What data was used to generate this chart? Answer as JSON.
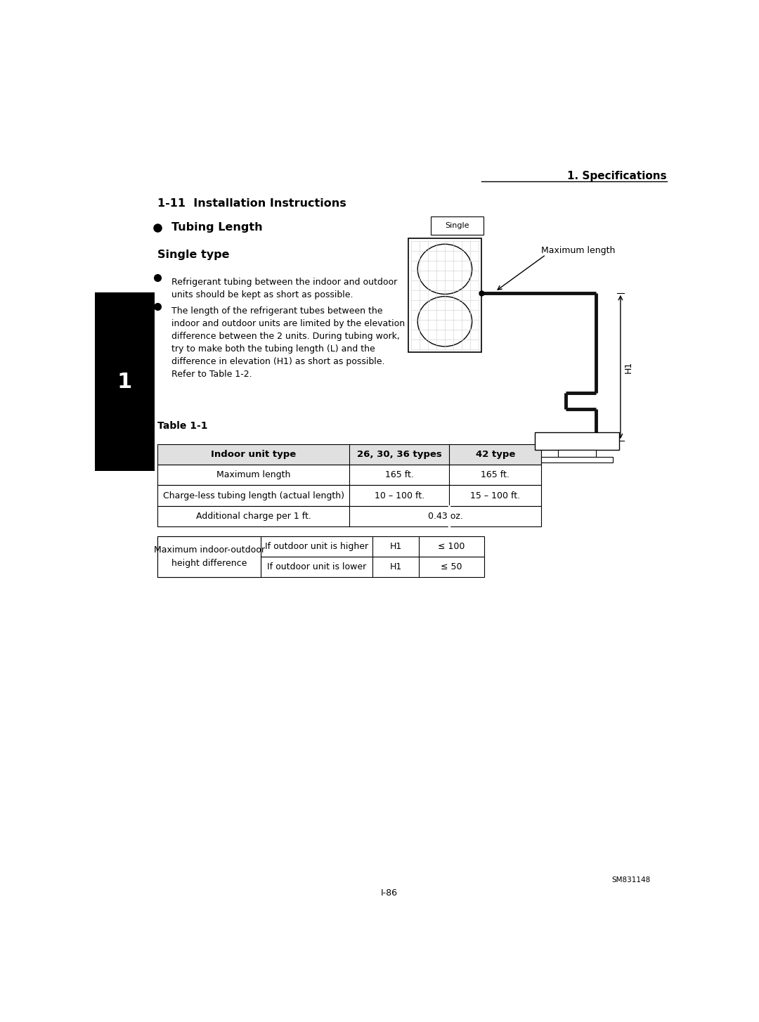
{
  "page_title": "1. Specifications",
  "section_title": "1-11  Installation Instructions",
  "bullet_title": "Tubing Length",
  "sub_title": "Single type",
  "bullet1": "Refrigerant tubing between the indoor and outdoor\nunits should be kept as short as possible.",
  "bullet2": "The length of the refrigerant tubes between the\nindoor and outdoor units are limited by the elevation\ndifference between the 2 units. During tubing work,\ntry to make both the tubing length (L) and the\ndifference in elevation (H1) as short as possible.\nRefer to Table 1-2.",
  "single_label": "Single",
  "max_length_label": "Maximum length",
  "h1_label": "H1",
  "table_title": "Table 1-1",
  "table_header": [
    "Indoor unit type",
    "26, 30, 36 types",
    "42 type"
  ],
  "table_rows": [
    [
      "Maximum length",
      "165 ft.",
      "165 ft."
    ],
    [
      "Charge-less tubing length (actual length)",
      "10 – 100 ft.",
      "15 – 100 ft."
    ],
    [
      "Additional charge per 1 ft.",
      "0.43 oz.",
      ""
    ]
  ],
  "table2_col0": "Maximum indoor-outdoor\nheight difference",
  "table2_rows": [
    [
      "If outdoor unit is higher",
      "H1",
      "≤ 100"
    ],
    [
      "If outdoor unit is lower",
      "H1",
      "≤ 50"
    ]
  ],
  "page_number": "I-86",
  "doc_number": "SM831148",
  "sidebar_number": "1",
  "bg_color": "#ffffff",
  "text_color": "#000000",
  "table_border_color": "#000000",
  "sidebar_bg": "#000000",
  "sidebar_text": "#ffffff"
}
